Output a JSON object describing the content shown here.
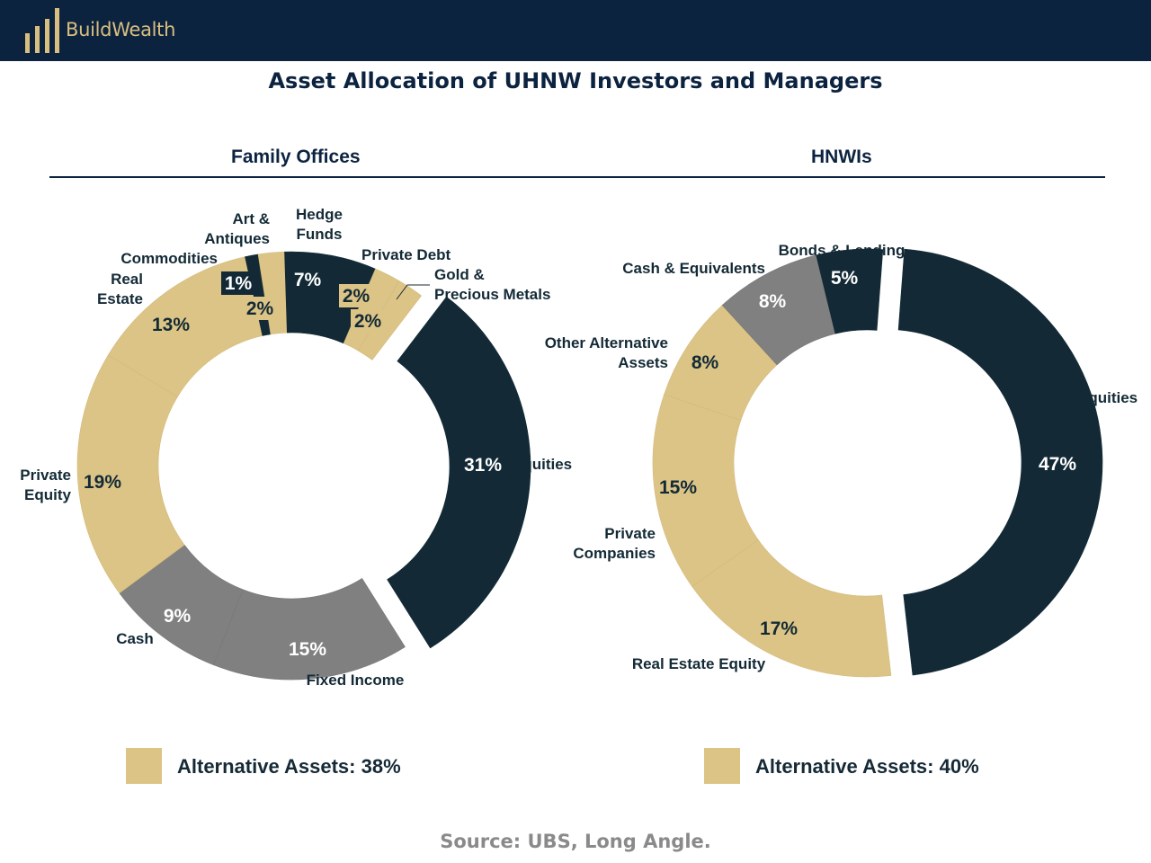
{
  "brand": {
    "name": "BuildWealth"
  },
  "title": "Asset Allocation of UHNW Investors and Managers",
  "source": "Source: UBS, Long Angle.",
  "colors": {
    "navy": "#0c2340",
    "dark": "#132a36",
    "gold": "#dcc486",
    "gray": "#808080"
  },
  "chart_data": [
    {
      "type": "pie",
      "title": "Family Offices",
      "slices": [
        {
          "label": "Equities",
          "value": 31,
          "value_label": "31%",
          "color": "dark",
          "exploded": true
        },
        {
          "label": "Fixed Income",
          "value": 15,
          "value_label": "15%",
          "color": "gray"
        },
        {
          "label": "Cash",
          "value": 9,
          "value_label": "9%",
          "color": "gray"
        },
        {
          "label": "Private Equity",
          "value": 19,
          "value_label": "19%",
          "color": "gold"
        },
        {
          "label": "Real Estate",
          "value": 13,
          "value_label": "13%",
          "color": "gold"
        },
        {
          "label": "Commodities",
          "value": 1,
          "value_label": "1%",
          "color": "dark"
        },
        {
          "label": "Art & Antiques",
          "value": 2,
          "value_label": "2%",
          "color": "gold"
        },
        {
          "label": "Hedge Funds",
          "value": 7,
          "value_label": "7%",
          "color": "dark"
        },
        {
          "label": "Private Debt",
          "value": 2,
          "value_label": "2%",
          "color": "gold"
        },
        {
          "label": "Gold & Precious Metals",
          "value": 2,
          "value_label": "2%",
          "color": "gold"
        }
      ],
      "legend": {
        "label": "Alternative Assets: 38%"
      }
    },
    {
      "type": "pie",
      "title": "HNWIs",
      "slices": [
        {
          "label": "Equities",
          "value": 47,
          "value_label": "47%",
          "color": "dark",
          "exploded": true
        },
        {
          "label": "Real Estate Equity",
          "value": 17,
          "value_label": "17%",
          "color": "gold"
        },
        {
          "label": "Private Companies",
          "value": 15,
          "value_label": "15%",
          "color": "gold"
        },
        {
          "label": "Other Alternative Assets",
          "value": 8,
          "value_label": "8%",
          "color": "gold"
        },
        {
          "label": "Cash & Equivalents",
          "value": 8,
          "value_label": "8%",
          "color": "gray"
        },
        {
          "label": "Bonds & Lending",
          "value": 5,
          "value_label": "5%",
          "color": "dark"
        }
      ],
      "legend": {
        "label": "Alternative Assets: 40%"
      }
    }
  ]
}
